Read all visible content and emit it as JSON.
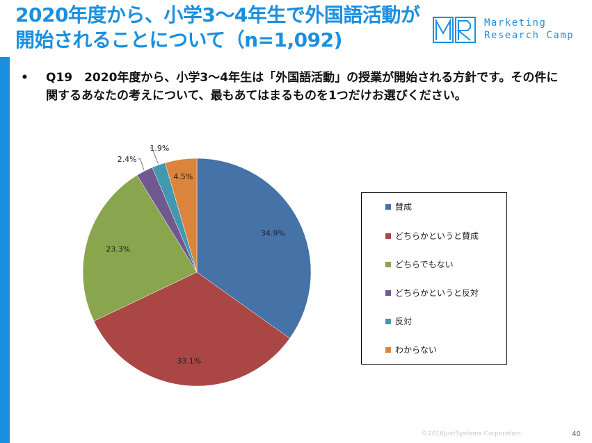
{
  "title": "2020年度から、小学3～4年生で外国語活動が開始されることについて（n=1,092)",
  "logo": {
    "line1": "Marketing",
    "line2": "Research Camp"
  },
  "question": {
    "bullet": "•",
    "text": "Q19　2020年度から、小学3～4年生は「外国語活動」の授業が開始される方針です。その件に関するあなたの考えについて、最もあてはまるものを1つだけお選びください。"
  },
  "chart_data": {
    "type": "pie",
    "categories": [
      "賛成",
      "どちらかというと賛成",
      "どちらでもない",
      "どちらかというと反対",
      "反対",
      "わからない"
    ],
    "values": [
      34.9,
      33.1,
      23.3,
      2.4,
      1.9,
      4.5
    ],
    "labels": [
      "34.9%",
      "33.1%",
      "23.3%",
      "2.4%",
      "1.9%",
      "4.5%"
    ],
    "colors": [
      "#4572a7",
      "#aa4643",
      "#89a54e",
      "#71588f",
      "#4198af",
      "#db843d"
    ],
    "legend_position": "right"
  },
  "footer": {
    "copyright": "©2016JustSystems Corporation",
    "page": "40"
  }
}
